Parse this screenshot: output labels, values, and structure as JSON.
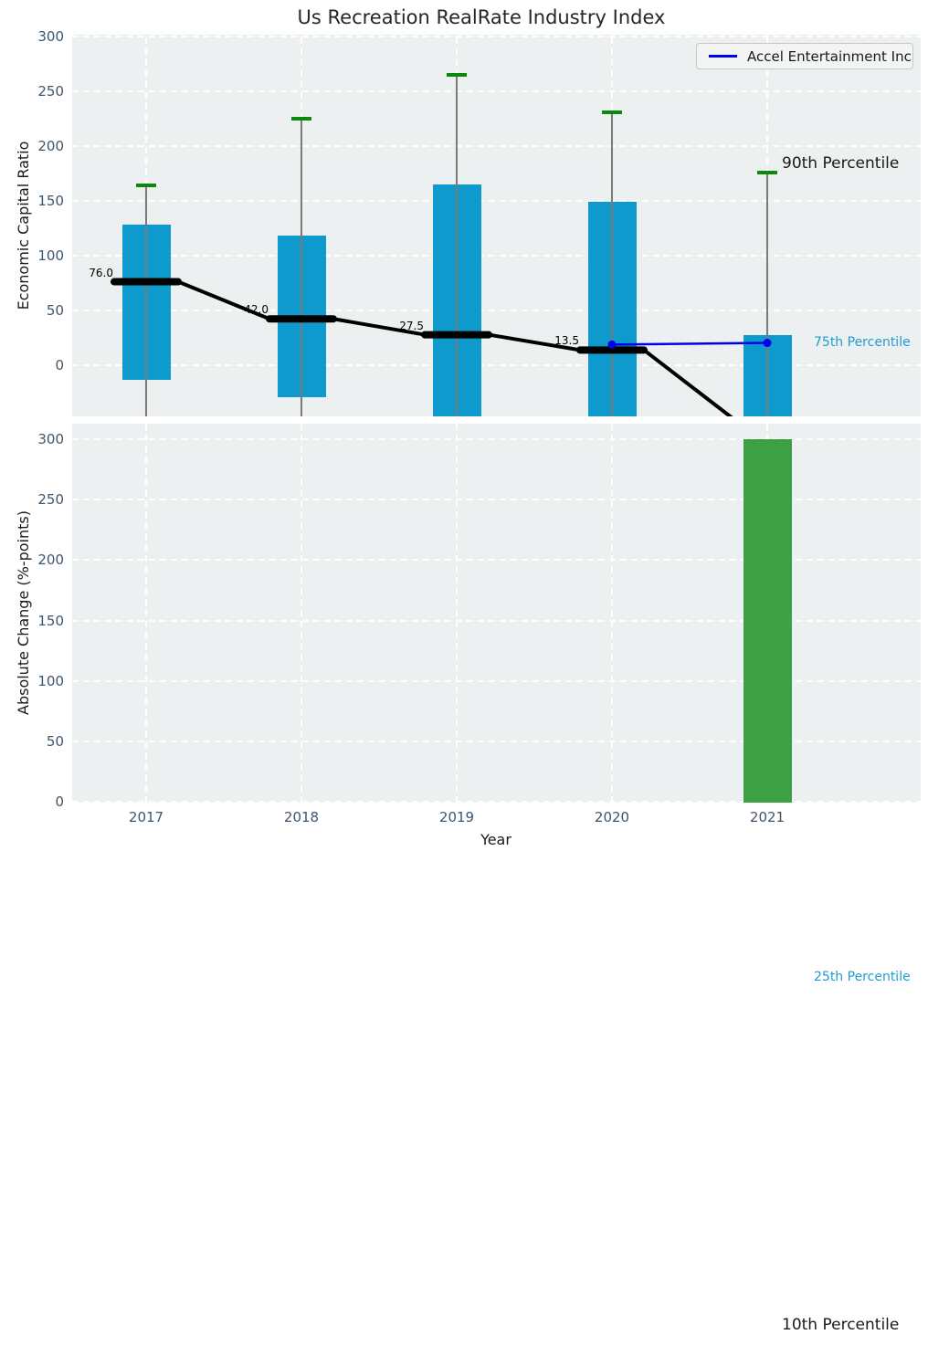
{
  "figure": {
    "title": "Us Recreation RealRate Industry Index"
  },
  "legend": {
    "label": "Accel Entertainment Inc",
    "line_color": "#0000ee",
    "position": "upper right"
  },
  "chart_data": [
    {
      "type": "box-percentile",
      "title": "Us Recreation RealRate Industry Index",
      "ylabel": "Economic Capital Ratio",
      "ylim": [
        -47,
        302
      ],
      "yticks": [
        0,
        50,
        100,
        150,
        200,
        250,
        300
      ],
      "grid": "white dashed, horizontal and vertical",
      "categories": [
        "2017",
        "2018",
        "2019",
        "2020",
        "2021"
      ],
      "percentiles": {
        "p90_cap": [
          164,
          225,
          265,
          231,
          176
        ],
        "p75_box_top": [
          128,
          118,
          165,
          149,
          27
        ],
        "median": [
          76.0,
          42.0,
          27.5,
          13.5,
          null
        ],
        "p25_box_bottom": [
          -14,
          -30,
          null,
          null,
          null
        ],
        "box_bottom_clipped_below_axis": [
          false,
          false,
          true,
          true,
          true
        ],
        "median_trend_exits_axis_after_2020": true
      },
      "series": [
        {
          "name": "Accel Entertainment Inc",
          "x": [
            "2020",
            "2021"
          ],
          "y": [
            18.5,
            20
          ],
          "color": "#0000ee",
          "marker": "circle"
        }
      ],
      "annotations": [
        {
          "text": "90th Percentile",
          "color": "#1a1a1a"
        },
        {
          "text": "75th Percentile",
          "color": "#1f9cd1"
        },
        {
          "text": "25th Percentile",
          "color": "#1f9cd1"
        },
        {
          "text": "10th Percentile",
          "color": "#1a1a1a"
        }
      ],
      "colors": {
        "box": "#0e9acc",
        "p90_cap": "#0a8a0a",
        "whisker": "#7a7a7a",
        "median_line": "#000000",
        "background": "#ecf0f1"
      }
    },
    {
      "type": "bar",
      "ylabel": "Absolute Change (%-points)",
      "xlabel": "Year",
      "ylim": [
        0,
        313
      ],
      "yticks": [
        0,
        50,
        100,
        150,
        200,
        250,
        300
      ],
      "grid": "white dashed, horizontal and vertical",
      "categories": [
        "2017",
        "2018",
        "2019",
        "2020",
        "2021"
      ],
      "values": [
        null,
        null,
        null,
        null,
        300
      ],
      "bar_color": "#3da044",
      "background": "#ecf0f1"
    }
  ]
}
